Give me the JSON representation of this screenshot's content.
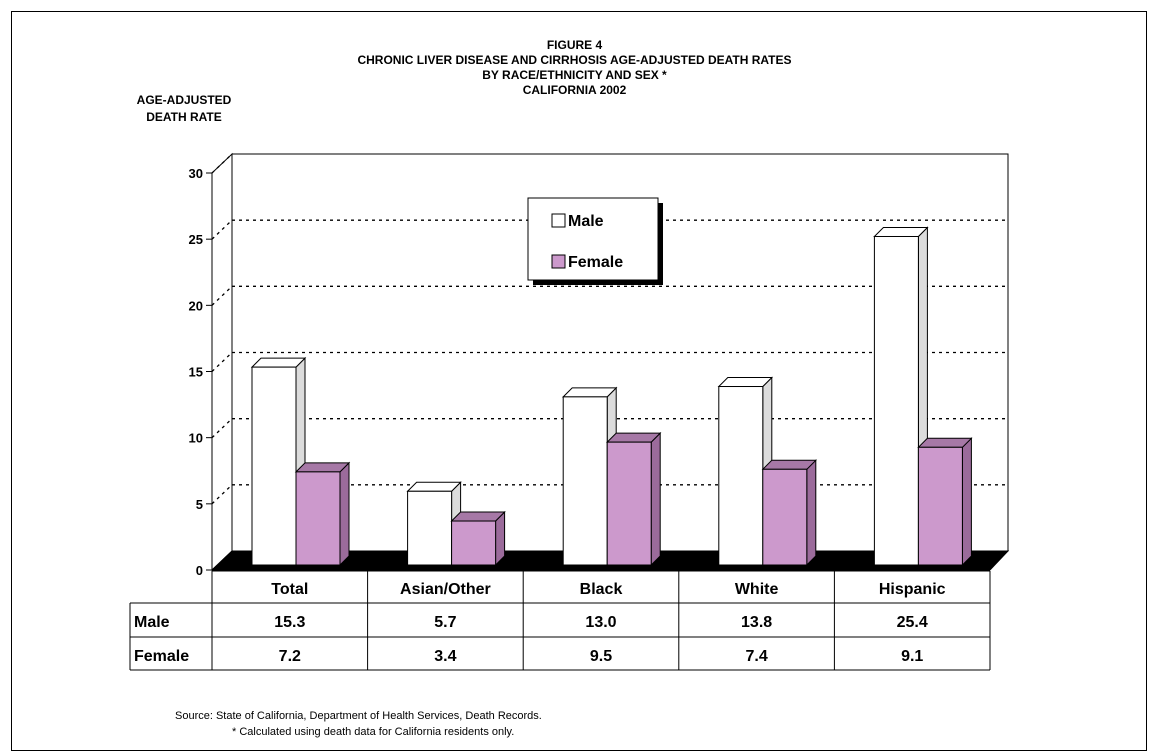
{
  "title_lines": [
    "FIGURE 4",
    "CHRONIC LIVER DISEASE AND CIRRHOSIS AGE-ADJUSTED DEATH RATES",
    "BY RACE/ETHNICITY AND SEX *",
    "CALIFORNIA 2002"
  ],
  "ylabel_lines": [
    "AGE-ADJUSTED",
    "DEATH RATE"
  ],
  "footnotes": {
    "source": "Source:  State of California, Department of Health Services, Death Records.",
    "note": "*  Calculated using death data for California residents only."
  },
  "colors": {
    "male_fill": "#ffffff",
    "female_fill": "#cc99cc",
    "female_side": "#9b6b9b",
    "female_top": "#a678a6",
    "floor": "#000000",
    "grid": "#000000"
  },
  "chart_data": {
    "type": "bar",
    "categories": [
      "Total",
      "Asian/Other",
      "Black",
      "White",
      "Hispanic"
    ],
    "series": [
      {
        "name": "Male",
        "values": [
          15.3,
          5.7,
          13.0,
          13.8,
          25.4
        ]
      },
      {
        "name": "Female",
        "values": [
          7.2,
          3.4,
          9.5,
          7.4,
          9.1
        ]
      }
    ],
    "ylim": [
      0,
      30
    ],
    "yticks": [
      "0",
      "5",
      "10",
      "15",
      "20",
      "25",
      "30"
    ],
    "grid": true,
    "legend": "top-center",
    "data_table": {
      "rows": [
        {
          "label": "Male",
          "values": [
            "15.3",
            "5.7",
            "13.0",
            "13.8",
            "25.4"
          ]
        },
        {
          "label": "Female",
          "values": [
            "7.2",
            "3.4",
            "9.5",
            "7.4",
            "9.1"
          ]
        }
      ]
    }
  }
}
